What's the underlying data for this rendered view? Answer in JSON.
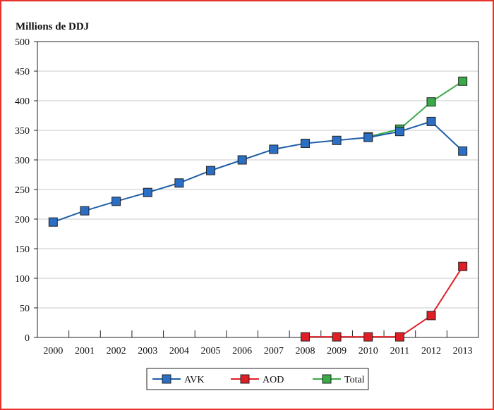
{
  "chart_data": {
    "type": "line",
    "title": "",
    "ylabel": "Millions de DDJ",
    "xlabel": "",
    "x": [
      "2000",
      "2001",
      "2002",
      "2003",
      "2004",
      "2005",
      "2006",
      "2007",
      "2008",
      "2009",
      "2010",
      "2011",
      "2012",
      "2013"
    ],
    "ylim": [
      0,
      500
    ],
    "yticks": [
      0,
      50,
      100,
      150,
      200,
      250,
      300,
      350,
      400,
      450,
      500
    ],
    "grid": true,
    "legend_position": "bottom",
    "series": [
      {
        "name": "AVK",
        "color": "#1f5fa8",
        "marker_color": "#2b6fc4",
        "values": [
          195,
          214,
          230,
          245,
          261,
          282,
          300,
          318,
          328,
          333,
          338,
          348,
          365,
          315
        ]
      },
      {
        "name": "AOD",
        "color": "#e01e26",
        "marker_color": "#e01e26",
        "values": [
          null,
          null,
          null,
          null,
          null,
          null,
          null,
          null,
          1,
          1,
          1,
          1,
          37,
          120
        ]
      },
      {
        "name": "Total",
        "color": "#3aaa48",
        "marker_color": "#3aaa48",
        "values": [
          null,
          null,
          null,
          null,
          null,
          null,
          null,
          null,
          null,
          null,
          339,
          352,
          398,
          433
        ]
      }
    ]
  }
}
